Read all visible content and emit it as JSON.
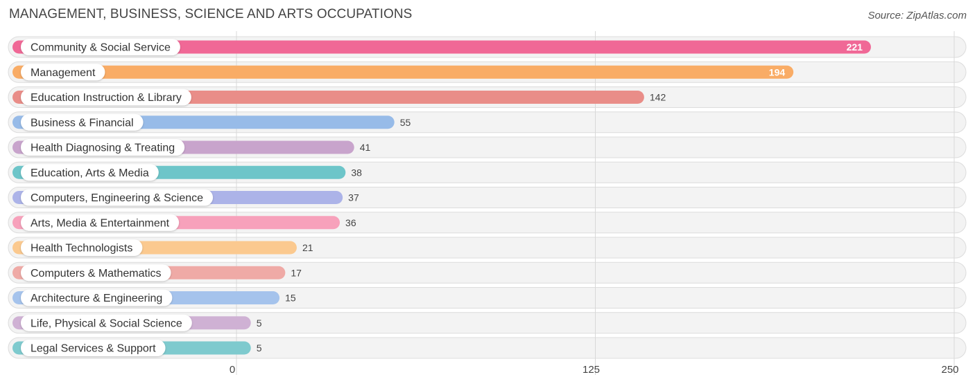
{
  "header": {
    "title": "MANAGEMENT, BUSINESS, SCIENCE AND ARTS OCCUPATIONS",
    "source": "Source: ZipAtlas.com"
  },
  "chart_data": {
    "type": "bar",
    "orientation": "horizontal",
    "title": "MANAGEMENT, BUSINESS, SCIENCE AND ARTS OCCUPATIONS",
    "xlim": [
      0,
      250
    ],
    "x_ticks": [
      0,
      125,
      250
    ],
    "x_tick_labels": [
      "0",
      "125",
      "250"
    ],
    "grid": true,
    "categories": [
      "Community & Social Service",
      "Management",
      "Education Instruction & Library",
      "Business & Financial",
      "Health Diagnosing & Treating",
      "Education, Arts & Media",
      "Computers, Engineering & Science",
      "Arts, Media & Entertainment",
      "Health Technologists",
      "Computers & Mathematics",
      "Architecture & Engineering",
      "Life, Physical & Social Science",
      "Legal Services & Support"
    ],
    "values": [
      221,
      194,
      142,
      55,
      41,
      38,
      37,
      36,
      21,
      17,
      15,
      5,
      5
    ],
    "value_labels": [
      "221",
      "194",
      "142",
      "55",
      "41",
      "38",
      "37",
      "36",
      "21",
      "17",
      "15",
      "5",
      "5"
    ],
    "colors": [
      "#f06896",
      "#f9ac66",
      "#e98d88",
      "#97bbe8",
      "#c8a4cc",
      "#6dc5c9",
      "#acb3e8",
      "#f7a1bb",
      "#fbc98f",
      "#efaaa6",
      "#a5c3ec",
      "#cfb1d4",
      "#7ecace"
    ]
  }
}
